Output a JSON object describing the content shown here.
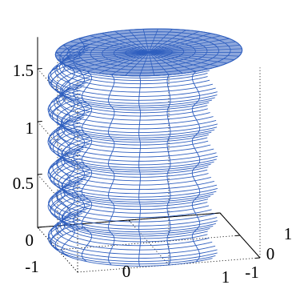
{
  "chart_data": {
    "type": "surface",
    "title": "",
    "xlabel": "",
    "ylabel": "",
    "zlabel": "",
    "xlim": [
      -1,
      1
    ],
    "ylim": [
      -1,
      1
    ],
    "zlim": [
      0,
      1.8
    ],
    "x_ticks": [
      -1,
      0,
      1
    ],
    "y_ticks": [
      -1,
      0,
      1
    ],
    "z_ticks": [
      0,
      0.5,
      1,
      1.5
    ],
    "x_tick_labels": [
      "-1",
      "0",
      "1"
    ],
    "y_tick_labels": [
      "-1",
      "0",
      "1"
    ],
    "z_tick_labels": [
      "0",
      "0.5",
      "1",
      "1.5"
    ],
    "grid": true,
    "line_color": "#2f5fbf",
    "surface": {
      "shape": "wavy cylinder",
      "radius_function": "r(z) = 1 + 0.08*sin(2*pi*z/0.3)",
      "mean_radius": 1,
      "wave_amplitude": 0.08,
      "wave_period": 0.3,
      "height": 1.8,
      "meridian_count": 20,
      "ring_count": 60,
      "top_cap": true
    }
  }
}
